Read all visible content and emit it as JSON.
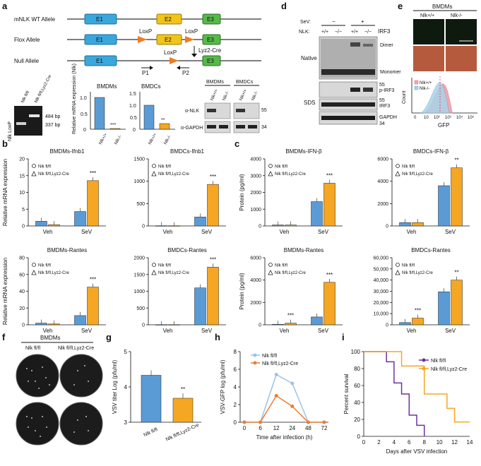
{
  "panels": {
    "a": "a",
    "b": "b",
    "c": "c",
    "d": "d",
    "e": "e",
    "f": "f",
    "g": "g",
    "h": "h",
    "i": "i"
  },
  "allele": {
    "wt": "mNLK WT Allele",
    "flox": "Flox Allele",
    "null": "Null Allele",
    "e1": "E1",
    "e2": "E2",
    "e3": "E3",
    "loxp": "LoxP",
    "cre": "Lyz2-Cre",
    "p1": "P1",
    "p2": "P2"
  },
  "gel": {
    "label": "Nlk LoxP",
    "lane1": "Nlk fl/fl",
    "lane2": "Nlk fl/fl,Lyz2-Cre",
    "band1": "484 bp",
    "band2": "337 bp"
  },
  "mrna_bmdm": {
    "title": "BMDMs",
    "ylabel": "Relative mRNA expression (Nlk)",
    "yticks": [
      "0",
      "0.5",
      "1.0"
    ],
    "x": [
      "Nlk+/+",
      "Nlk-/-"
    ],
    "sig": "***"
  },
  "mrna_bmdc": {
    "title": "BMDCs",
    "yticks": [
      "0",
      "0.5",
      "1.0",
      "1.5"
    ],
    "x": [
      "Nlk+/+",
      "Nlk-/-"
    ],
    "sig": "**"
  },
  "wb_a": {
    "bmdm": "BMDMs",
    "bmdc": "BMDCs",
    "lanes": [
      "Nlk+/+",
      "Nlk-/-",
      "Nlk+/+",
      "Nlk-/-"
    ],
    "rows": [
      "α-NLK",
      "α-GAPDH"
    ],
    "mw": [
      "55",
      "34"
    ]
  },
  "wb_d": {
    "sev": "SeV:",
    "nlk": "NLK:",
    "minus": "−",
    "plus": "+",
    "lanes": [
      "+/+",
      "−/−",
      "+/+",
      "−/−"
    ],
    "native": "Native",
    "sds": "SDS",
    "irf3": "IRF3",
    "dimer": "Dimer",
    "monomer": "Monomer",
    "pirf3": "p-IRF3",
    "irf3b": "IRF3",
    "gapdh": "GAPDH",
    "mw": [
      "55",
      "55",
      "34"
    ]
  },
  "panel_e": {
    "title": "BMDMs",
    "col1": "Nlk+/+",
    "col2": "Nlk-/-",
    "legend": [
      "Nlk+/+",
      "Nlk-/-"
    ],
    "ylabel": "Count",
    "xlabel": "GFP",
    "xticks": [
      "0",
      "10",
      "10²",
      "10³",
      "10⁴",
      "10⁵"
    ],
    "hist_color1": "#f4a6b0",
    "hist_color2": "#a9d3e8"
  },
  "legend_b": {
    "s1": "Nlk fl/fl",
    "s2": "Nlk fl/fl,Lyz2-Cre"
  },
  "chart_data": [
    {
      "type": "bar",
      "title": "BMDMs-Ifnb1",
      "ylabel": "Relative mRNA expression",
      "categories": [
        "Veh",
        "SeV"
      ],
      "ylim": [
        0,
        20
      ],
      "yticks": [
        "0",
        "5",
        "10",
        "15",
        "20"
      ],
      "series": [
        {
          "name": "Nlk fl/fl",
          "values": [
            1.4,
            4.3
          ]
        },
        {
          "name": "Nlk fl/fl,Lyz2-Cre",
          "values": [
            0.4,
            13.5
          ]
        }
      ],
      "sig": [
        "",
        "***"
      ]
    },
    {
      "type": "bar",
      "title": "BMDCs-Ifnb1",
      "ylabel": "",
      "categories": [
        "Veh",
        "SeV"
      ],
      "ylim": [
        0,
        1500
      ],
      "yticks": [
        "0",
        "500",
        "1000",
        "1500"
      ],
      "series": [
        {
          "name": "Nlk fl/fl",
          "values": [
            5,
            200
          ]
        },
        {
          "name": "Nlk fl/fl,Lyz2-Cre",
          "values": [
            5,
            930
          ]
        }
      ],
      "sig": [
        "",
        "***"
      ]
    },
    {
      "type": "bar",
      "title": "BMDMs-IFN-β",
      "ylabel": "Protein (pg/ml)",
      "categories": [
        "Veh",
        "SeV"
      ],
      "ylim": [
        0,
        4000
      ],
      "yticks": [
        "0",
        "1000",
        "2000",
        "3000",
        "4000"
      ],
      "series": [
        {
          "name": "Nlk fl/fl",
          "values": [
            60,
            1450
          ]
        },
        {
          "name": "Nlk fl/fl,Lyz2-Cre",
          "values": [
            60,
            2550
          ]
        }
      ],
      "sig": [
        "",
        "***"
      ]
    },
    {
      "type": "bar",
      "title": "BMDCs-IFN-β",
      "ylabel": "",
      "categories": [
        "Veh",
        "SeV"
      ],
      "ylim": [
        0,
        6000
      ],
      "yticks": [
        "0",
        "2000",
        "4000",
        "6000"
      ],
      "series": [
        {
          "name": "Nlk fl/fl",
          "values": [
            300,
            3600
          ]
        },
        {
          "name": "Nlk fl/fl,Lyz2-Cre",
          "values": [
            300,
            5200
          ]
        }
      ],
      "sig": [
        "",
        "**"
      ]
    },
    {
      "type": "bar",
      "title": "BMDMs-Rantes",
      "ylabel": "Relative mRNA expression",
      "categories": [
        "Veh",
        "SeV"
      ],
      "ylim": [
        0,
        80
      ],
      "yticks": [
        "0",
        "20",
        "40",
        "60",
        "80"
      ],
      "series": [
        {
          "name": "Nlk fl/fl",
          "values": [
            2,
            11
          ]
        },
        {
          "name": "Nlk fl/fl,Lyz2-Cre",
          "values": [
            1,
            45
          ]
        }
      ],
      "sig": [
        "",
        "***"
      ]
    },
    {
      "type": "bar",
      "title": "BMDCs-Rantes",
      "ylabel": "",
      "categories": [
        "Veh",
        "SeV"
      ],
      "ylim": [
        0,
        2000
      ],
      "yticks": [
        "0",
        "500",
        "1000",
        "1500",
        "2000"
      ],
      "series": [
        {
          "name": "Nlk fl/fl",
          "values": [
            5,
            1100
          ]
        },
        {
          "name": "Nlk fl/fl,Lyz2-Cre",
          "values": [
            5,
            1720
          ]
        }
      ],
      "sig": [
        "",
        "***"
      ]
    },
    {
      "type": "bar",
      "title": "BMDMs-Rantes",
      "ylabel": "Protein (pg/ml)",
      "categories": [
        "Veh",
        "SeV"
      ],
      "ylim": [
        0,
        6000
      ],
      "yticks": [
        "0",
        "2000",
        "4000",
        "6000"
      ],
      "series": [
        {
          "name": "Nlk fl/fl",
          "values": [
            50,
            700
          ]
        },
        {
          "name": "Nlk fl/fl,Lyz2-Cre",
          "values": [
            150,
            3800
          ]
        }
      ],
      "sig": [
        "***",
        "***"
      ]
    },
    {
      "type": "bar",
      "title": "BMDCs-Rantes",
      "ylabel": "",
      "categories": [
        "Veh",
        "SeV"
      ],
      "ylim": [
        0,
        60000
      ],
      "yticks": [
        "0",
        "10,000",
        "20,000",
        "30,000",
        "40,000",
        "50,000",
        "60,000"
      ],
      "series": [
        {
          "name": "Nlk fl/fl",
          "values": [
            2000,
            29500
          ]
        },
        {
          "name": "Nlk fl/fl,Lyz2-Cre",
          "values": [
            6000,
            40000
          ]
        }
      ],
      "sig": [
        "***",
        "**"
      ]
    },
    {
      "type": "bar",
      "title": "",
      "ylabel": "VSV titer Log (pfu/ml)",
      "categories": [
        "Nlk fl/fl",
        "Nlk fl/fl,Lyz2-Cre"
      ],
      "ylim": [
        3,
        5
      ],
      "yticks": [
        "3",
        "4",
        "5"
      ],
      "values": [
        4.33,
        3.68
      ],
      "sig": "**"
    },
    {
      "type": "line",
      "title": "",
      "ylabel": "VSV-GFP log (pfu/ml)",
      "xlabel": "Time after infection (h)",
      "x": [
        0,
        6,
        12,
        24,
        48,
        72
      ],
      "xticks": [
        "0",
        "6",
        "12",
        "24",
        "48",
        "72"
      ],
      "ylim": [
        0,
        8
      ],
      "yticks": [
        "0",
        "2",
        "4",
        "6",
        "8"
      ],
      "series": [
        {
          "name": "Nlk fl/fl",
          "values": [
            0,
            0,
            5.4,
            4.4,
            0,
            0
          ]
        },
        {
          "name": "Nlk fl/fl,Lyz2-Cre",
          "values": [
            0,
            0,
            3.0,
            1.8,
            0,
            0
          ]
        }
      ]
    },
    {
      "type": "line",
      "title": "",
      "ylabel": "Percent survival",
      "xlabel": "Days after VSV infection",
      "x": [
        0,
        2,
        4,
        6,
        8,
        10,
        12,
        14
      ],
      "xticks": [
        "0",
        "2",
        "4",
        "6",
        "8",
        "10",
        "12",
        "14"
      ],
      "ylim": [
        0,
        100
      ],
      "yticks": [
        "0",
        "20",
        "40",
        "60",
        "80",
        "100"
      ],
      "series": [
        {
          "name": "Nlk fl/fl",
          "steps": [
            [
              0,
              100
            ],
            [
              3,
              100
            ],
            [
              3,
              88
            ],
            [
              4,
              88
            ],
            [
              4,
              63
            ],
            [
              5,
              63
            ],
            [
              5,
              50
            ],
            [
              6,
              50
            ],
            [
              6,
              25
            ],
            [
              7,
              25
            ],
            [
              7,
              13
            ],
            [
              8,
              13
            ],
            [
              8,
              0
            ]
          ]
        },
        {
          "name": "Nlk fl/fl,Lyz2-Cre",
          "steps": [
            [
              0,
              100
            ],
            [
              5,
              100
            ],
            [
              5,
              83
            ],
            [
              8,
              83
            ],
            [
              8,
              50
            ],
            [
              11,
              50
            ],
            [
              11,
              33
            ],
            [
              12,
              33
            ],
            [
              12,
              17
            ],
            [
              14,
              17
            ]
          ]
        }
      ]
    }
  ],
  "panel_f": {
    "title": "BMDMs",
    "col1": "Nlk fl/fl",
    "col2": "Nlk fl/fl,Lyz2-Cre"
  },
  "colors": {
    "blue": "#5b9bd5",
    "orange": "#f5a623",
    "purple": "#7030a0"
  }
}
